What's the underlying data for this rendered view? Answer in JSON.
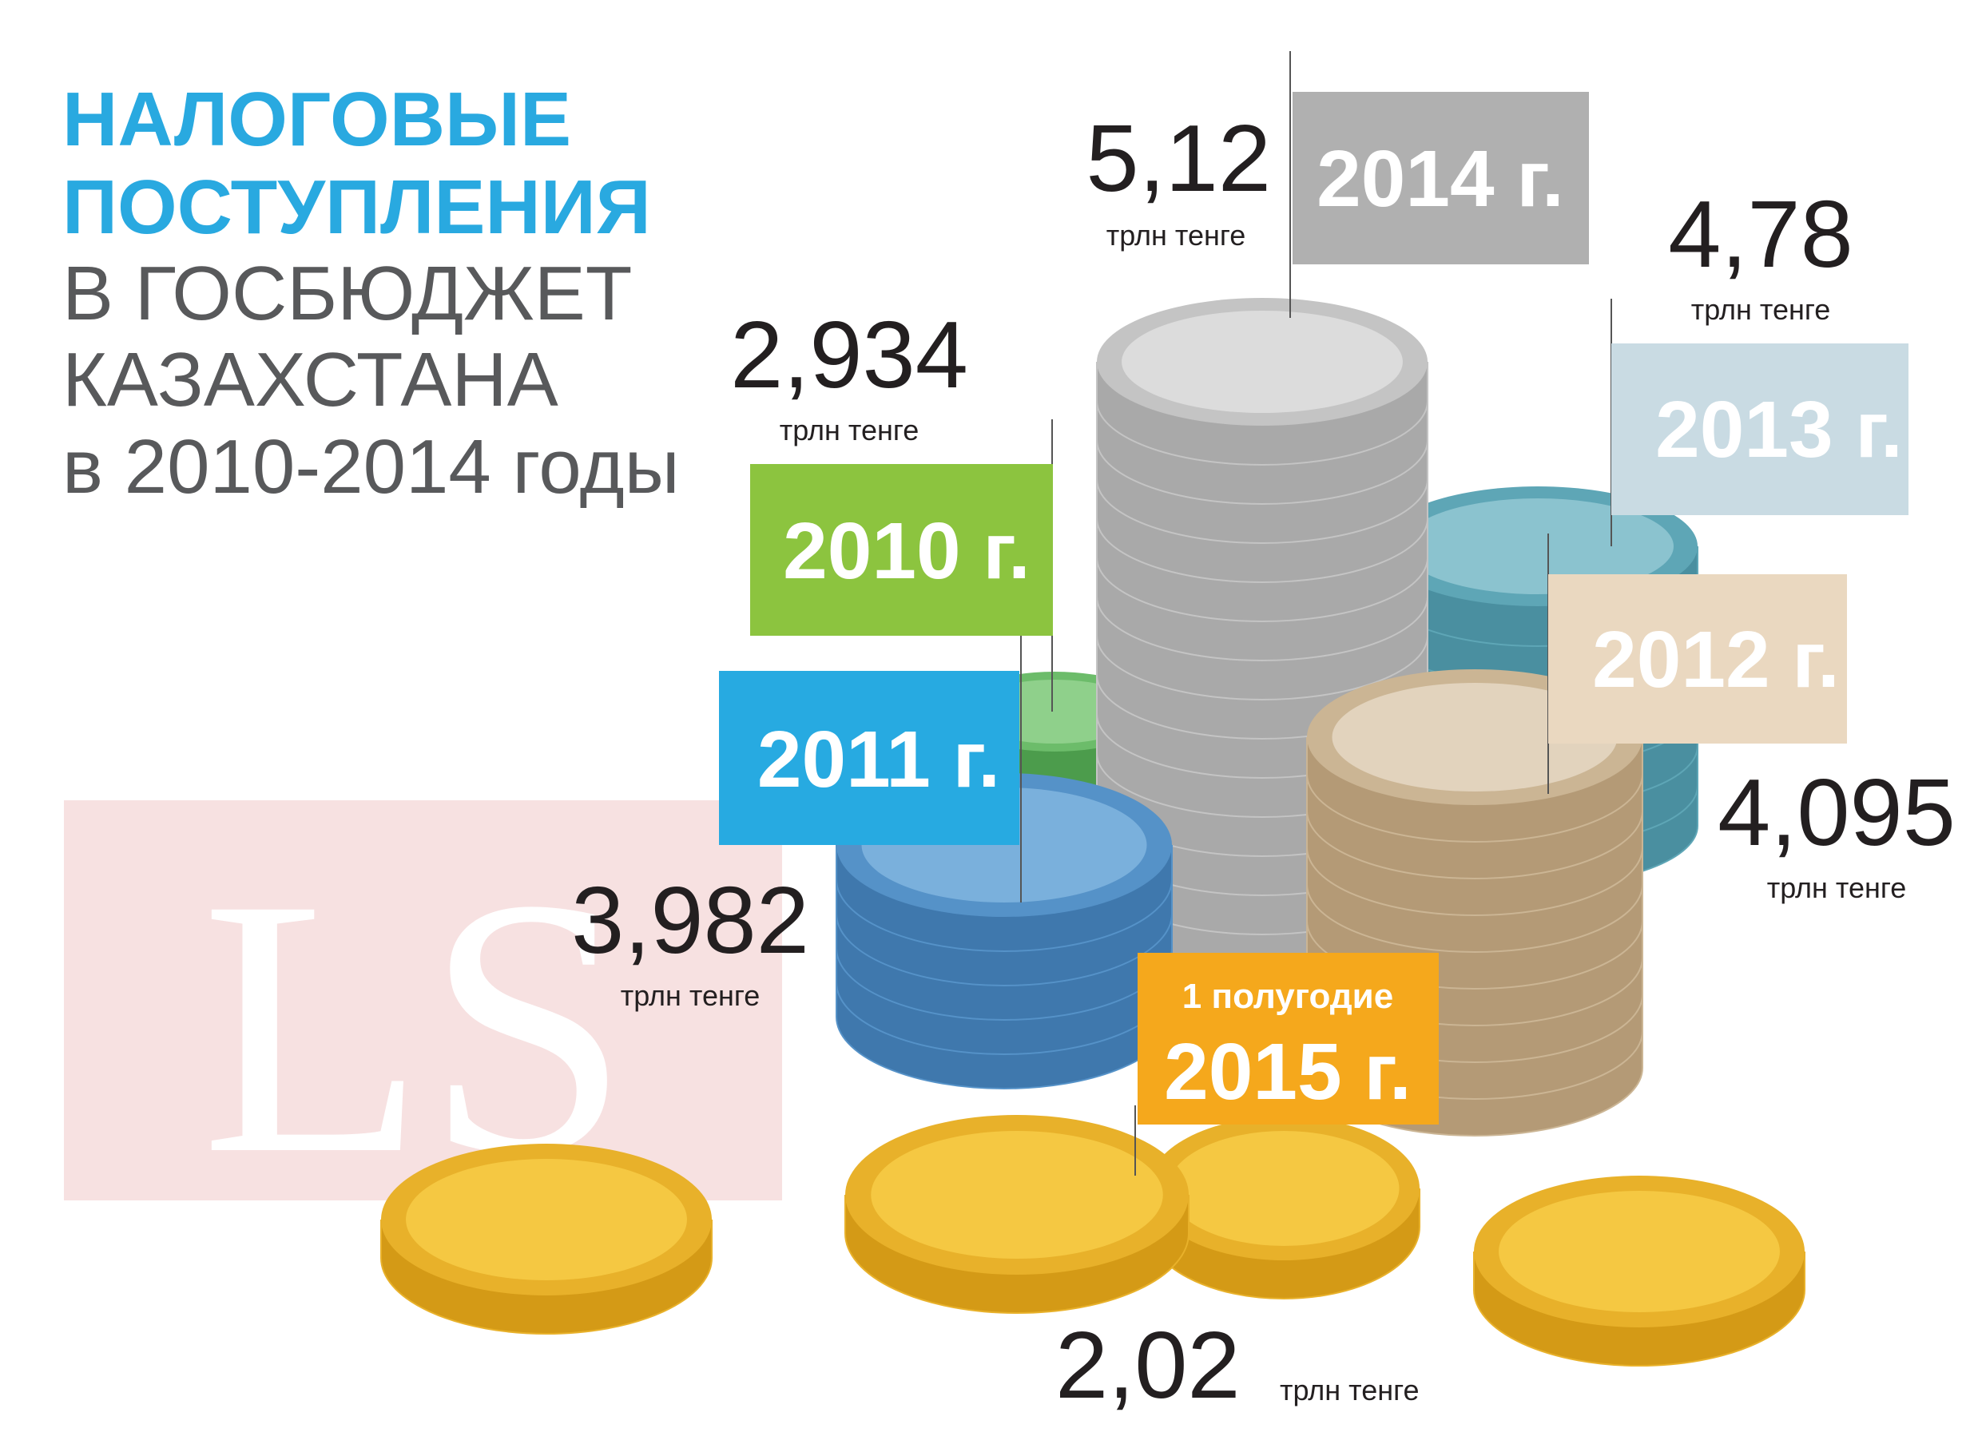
{
  "title": {
    "lines": [
      "НАЛОГОВЫЕ",
      "ПОСТУПЛЕНИЯ",
      "В ГОСБЮДЖЕТ",
      "КАЗАХСТАНА",
      "в 2010-2014 годы"
    ]
  },
  "watermark": "LS",
  "items": [
    {
      "period": "2014 г.",
      "value": "5,12",
      "unit": "трлн тенге"
    },
    {
      "period": "2013 г.",
      "value": "4,78",
      "unit": "трлн тенге"
    },
    {
      "period": "2010 г.",
      "value": "2,934",
      "unit": "трлн тенге"
    },
    {
      "period": "2011 г.",
      "value": "3,982",
      "unit": "трлн тенге"
    },
    {
      "period": "2012 г.",
      "value": "4,095",
      "unit": "трлн тенге"
    },
    {
      "subtitle": "1 полугодие",
      "period": "2015 г.",
      "value": "2,02",
      "unit": "трлн тенге"
    }
  ]
}
